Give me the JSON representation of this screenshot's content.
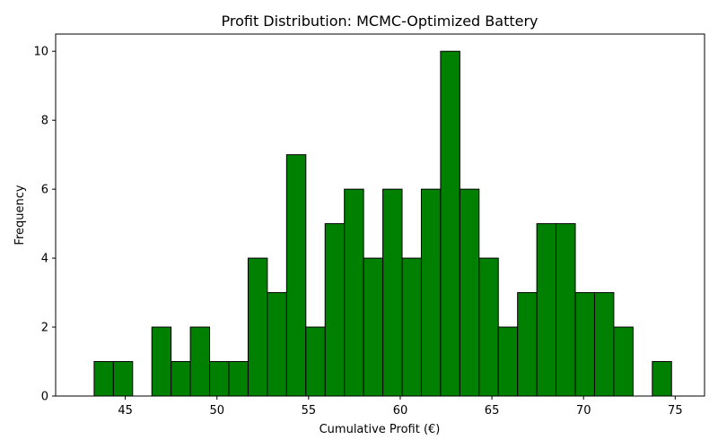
{
  "chart_data": {
    "type": "bar",
    "title": "Profit Distribution: MCMC-Optimized Battery",
    "xlabel": "Cumulative Profit (€)",
    "ylabel": "Frequency",
    "bar_color": "#008000",
    "edge_color": "#000000",
    "x_ticks": [
      45,
      50,
      55,
      60,
      65,
      70,
      75
    ],
    "y_ticks": [
      0,
      2,
      4,
      6,
      8,
      10
    ],
    "xlim": [
      41.2,
      76.6
    ],
    "ylim": [
      0,
      10.5
    ],
    "grid": false,
    "bins": [
      {
        "x0": 43.3,
        "x1": 44.35,
        "count": 1
      },
      {
        "x0": 44.35,
        "x1": 45.4,
        "count": 1
      },
      {
        "x0": 45.4,
        "x1": 46.45,
        "count": 0
      },
      {
        "x0": 46.45,
        "x1": 47.5,
        "count": 2
      },
      {
        "x0": 47.5,
        "x1": 48.55,
        "count": 1
      },
      {
        "x0": 48.55,
        "x1": 49.6,
        "count": 2
      },
      {
        "x0": 49.6,
        "x1": 50.65,
        "count": 1
      },
      {
        "x0": 50.65,
        "x1": 51.7,
        "count": 1
      },
      {
        "x0": 51.7,
        "x1": 52.75,
        "count": 4
      },
      {
        "x0": 52.75,
        "x1": 53.8,
        "count": 3
      },
      {
        "x0": 53.8,
        "x1": 54.85,
        "count": 7
      },
      {
        "x0": 54.85,
        "x1": 55.9,
        "count": 2
      },
      {
        "x0": 55.9,
        "x1": 56.95,
        "count": 5
      },
      {
        "x0": 56.95,
        "x1": 58.0,
        "count": 6
      },
      {
        "x0": 58.0,
        "x1": 59.05,
        "count": 4
      },
      {
        "x0": 59.05,
        "x1": 60.1,
        "count": 6
      },
      {
        "x0": 60.1,
        "x1": 61.15,
        "count": 4
      },
      {
        "x0": 61.15,
        "x1": 62.2,
        "count": 6
      },
      {
        "x0": 62.2,
        "x1": 63.25,
        "count": 10
      },
      {
        "x0": 63.25,
        "x1": 64.3,
        "count": 6
      },
      {
        "x0": 64.3,
        "x1": 65.35,
        "count": 4
      },
      {
        "x0": 65.35,
        "x1": 66.4,
        "count": 2
      },
      {
        "x0": 66.4,
        "x1": 67.45,
        "count": 3
      },
      {
        "x0": 67.45,
        "x1": 68.5,
        "count": 5
      },
      {
        "x0": 68.5,
        "x1": 69.55,
        "count": 5
      },
      {
        "x0": 69.55,
        "x1": 70.6,
        "count": 3
      },
      {
        "x0": 70.6,
        "x1": 71.65,
        "count": 3
      },
      {
        "x0": 71.65,
        "x1": 72.7,
        "count": 2
      },
      {
        "x0": 72.7,
        "x1": 73.75,
        "count": 0
      },
      {
        "x0": 73.75,
        "x1": 74.8,
        "count": 1
      }
    ]
  }
}
